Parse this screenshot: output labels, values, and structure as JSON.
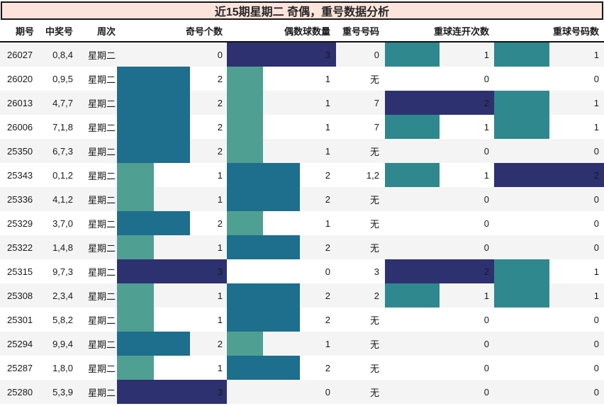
{
  "chart_data": {
    "type": "table",
    "title": "近15期星期二 奇偶，重号数据分析",
    "columns": [
      "期号",
      "中奖号",
      "周次",
      "奇号个数",
      "偶数球数量",
      "重号号码",
      "重球连开次数",
      "重球号码数"
    ],
    "bar_columns": {
      "odd_count": {
        "max": 3
      },
      "even_count": {
        "max": 3
      },
      "repeat_streak": {
        "max": 2
      },
      "repeat_digit_count": {
        "max": 2
      }
    },
    "rows": [
      {
        "period": "26027",
        "winning": "0,8,4",
        "weekday": "星期二",
        "odd_count": 0,
        "even_count": 3,
        "repeat_number": "0",
        "repeat_streak": 1,
        "repeat_digit_count": 1
      },
      {
        "period": "26020",
        "winning": "0,9,5",
        "weekday": "星期二",
        "odd_count": 2,
        "even_count": 1,
        "repeat_number": "无",
        "repeat_streak": 0,
        "repeat_digit_count": 0
      },
      {
        "period": "26013",
        "winning": "4,7,7",
        "weekday": "星期二",
        "odd_count": 2,
        "even_count": 1,
        "repeat_number": "7",
        "repeat_streak": 2,
        "repeat_digit_count": 1
      },
      {
        "period": "26006",
        "winning": "7,1,8",
        "weekday": "星期二",
        "odd_count": 2,
        "even_count": 1,
        "repeat_number": "7",
        "repeat_streak": 1,
        "repeat_digit_count": 1
      },
      {
        "period": "25350",
        "winning": "6,7,3",
        "weekday": "星期二",
        "odd_count": 2,
        "even_count": 1,
        "repeat_number": "无",
        "repeat_streak": 0,
        "repeat_digit_count": 0
      },
      {
        "period": "25343",
        "winning": "0,1,2",
        "weekday": "星期二",
        "odd_count": 1,
        "even_count": 2,
        "repeat_number": "1,2",
        "repeat_streak": 1,
        "repeat_digit_count": 2
      },
      {
        "period": "25336",
        "winning": "4,1,2",
        "weekday": "星期二",
        "odd_count": 1,
        "even_count": 2,
        "repeat_number": "无",
        "repeat_streak": 0,
        "repeat_digit_count": 0
      },
      {
        "period": "25329",
        "winning": "3,7,0",
        "weekday": "星期二",
        "odd_count": 2,
        "even_count": 1,
        "repeat_number": "无",
        "repeat_streak": 0,
        "repeat_digit_count": 0
      },
      {
        "period": "25322",
        "winning": "1,4,8",
        "weekday": "星期二",
        "odd_count": 1,
        "even_count": 2,
        "repeat_number": "无",
        "repeat_streak": 0,
        "repeat_digit_count": 0
      },
      {
        "period": "25315",
        "winning": "9,7,3",
        "weekday": "星期二",
        "odd_count": 3,
        "even_count": 0,
        "repeat_number": "3",
        "repeat_streak": 2,
        "repeat_digit_count": 1
      },
      {
        "period": "25308",
        "winning": "2,3,4",
        "weekday": "星期二",
        "odd_count": 1,
        "even_count": 2,
        "repeat_number": "2",
        "repeat_streak": 1,
        "repeat_digit_count": 1
      },
      {
        "period": "25301",
        "winning": "5,8,2",
        "weekday": "星期二",
        "odd_count": 1,
        "even_count": 2,
        "repeat_number": "无",
        "repeat_streak": 0,
        "repeat_digit_count": 0
      },
      {
        "period": "25294",
        "winning": "9,9,4",
        "weekday": "星期二",
        "odd_count": 2,
        "even_count": 1,
        "repeat_number": "无",
        "repeat_streak": 0,
        "repeat_digit_count": 0
      },
      {
        "period": "25287",
        "winning": "1,8,0",
        "weekday": "星期二",
        "odd_count": 1,
        "even_count": 2,
        "repeat_number": "无",
        "repeat_streak": 0,
        "repeat_digit_count": 0
      },
      {
        "period": "25280",
        "winning": "5,3,9",
        "weekday": "星期二",
        "odd_count": 3,
        "even_count": 0,
        "repeat_number": "无",
        "repeat_streak": 0,
        "repeat_digit_count": 0
      }
    ]
  },
  "colors": {
    "scale_1_of_3": "#4fa092",
    "scale_2_of_3": "#1e6e8d",
    "scale_3_of_3": "#2d3170",
    "scale_1_of_2": "#2f888e",
    "scale_2_of_2": "#2d3170",
    "title_bg": "#fce4dc",
    "row_alt_bg": "#f4f4f4",
    "text": "#1a1a1a"
  }
}
